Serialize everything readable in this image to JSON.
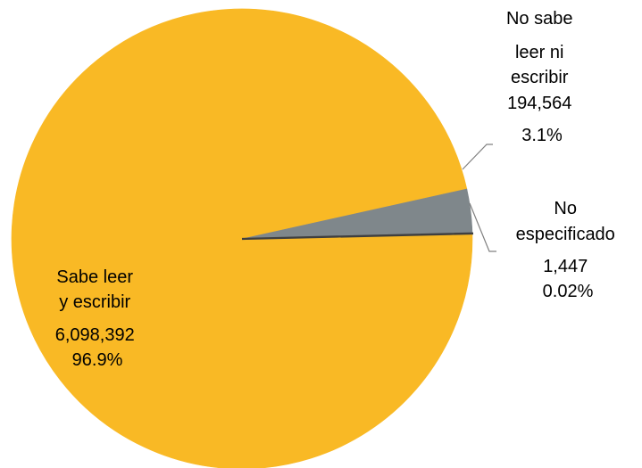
{
  "chart_data": {
    "type": "pie",
    "title": "",
    "slices": [
      {
        "label_lines": [
          "Sabe leer",
          "y escribir"
        ],
        "value": 6098392,
        "value_text": "6,098,392",
        "percent_text": "96.9%",
        "color": "#F9B925"
      },
      {
        "label_lines": [
          "No sabe",
          "leer ni",
          "escribir"
        ],
        "value": 194564,
        "value_text": "194,564",
        "percent_text": "3.1%",
        "color": "#7F878B"
      },
      {
        "label_lines": [
          "No",
          "especificado"
        ],
        "value": 1447,
        "value_text": "1,447",
        "percent_text": "0.02%",
        "color": "#3F3F3F"
      }
    ],
    "legend": "none",
    "data_labels": "outside-and-inside with leader lines"
  }
}
